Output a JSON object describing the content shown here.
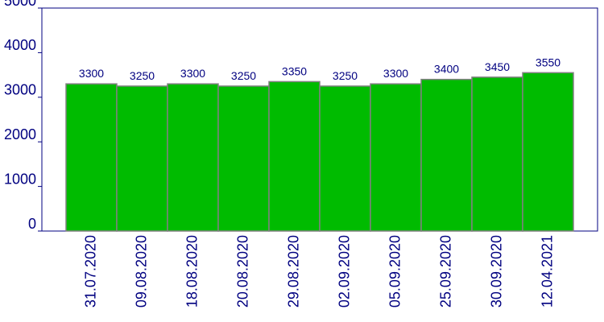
{
  "chart_data": {
    "type": "bar",
    "categories": [
      "31.07.2020",
      "09.08.2020",
      "18.08.2020",
      "20.08.2020",
      "29.08.2020",
      "02.09.2020",
      "05.09.2020",
      "25.09.2020",
      "30.09.2020",
      "12.04.2021"
    ],
    "values": [
      3300,
      3250,
      3300,
      3250,
      3350,
      3250,
      3300,
      3400,
      3450,
      3550
    ],
    "color": "#00bb00",
    "ylim": [
      0,
      5000
    ],
    "yticks": [
      0,
      1000,
      2000,
      3000,
      4000,
      5000
    ]
  }
}
